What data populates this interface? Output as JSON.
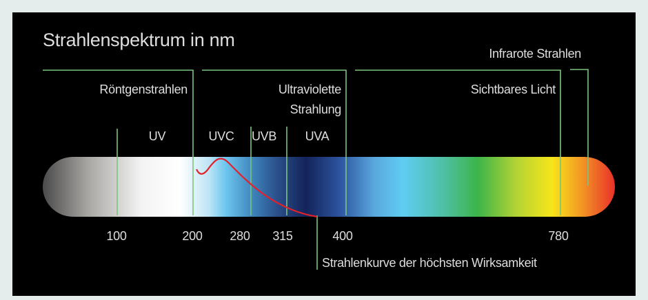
{
  "title": "Strahlenspektrum in nm",
  "ranges": {
    "xray": "Röntgenstrahlen",
    "ultraviolet": [
      "Ultraviolette",
      "Strahlung"
    ],
    "visible": "Sichtbares Licht",
    "infrared": "Infrarote Strahlen"
  },
  "uv_bands": [
    "UV",
    "UVC",
    "UVB",
    "UVA"
  ],
  "scale": [
    100,
    200,
    280,
    315,
    400,
    780
  ],
  "curve_label": "Strahlenkurve der höchsten Wirksamkeit"
}
